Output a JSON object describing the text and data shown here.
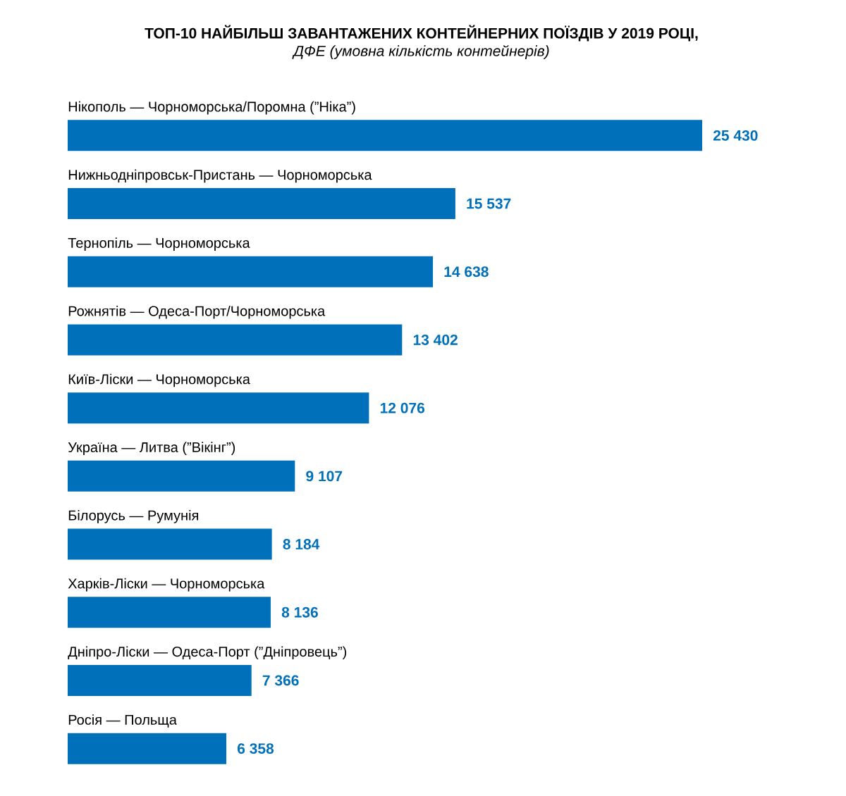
{
  "chart_data": {
    "type": "bar",
    "orientation": "horizontal",
    "title": "ТОП-10 НАЙБІЛЬШ ЗАВАНТАЖЕНИХ КОНТЕЙНЕРНИХ ПОЇЗДІВ У 2019 РОЦІ,",
    "subtitle": "ДФЕ (умовна кількість контейнерів)",
    "categories": [
      "Нікополь — Чорноморська/Поромна (”Ніка”)",
      "Нижньодніпровськ-Пристань — Чорноморська",
      "Тернопіль — Чорноморська",
      "Рожнятів — Одеса-Порт/Чорноморська",
      "Київ-Ліски — Чорноморська",
      "Україна — Литва (”Вікінг”)",
      "Білорусь — Румунія",
      "Харків-Ліски — Чорноморська",
      "Дніпро-Ліски — Одеса-Порт (”Дніпровець”)",
      "Росія — Польща"
    ],
    "values": [
      25430,
      15537,
      14638,
      13402,
      12076,
      9107,
      8184,
      8136,
      7366,
      6358
    ],
    "value_labels": [
      "25 430",
      "15 537",
      "14 638",
      "13 402",
      "12 076",
      "9 107",
      "8 184",
      "8 136",
      "7 366",
      "6 358"
    ],
    "color": "#0070bb"
  }
}
